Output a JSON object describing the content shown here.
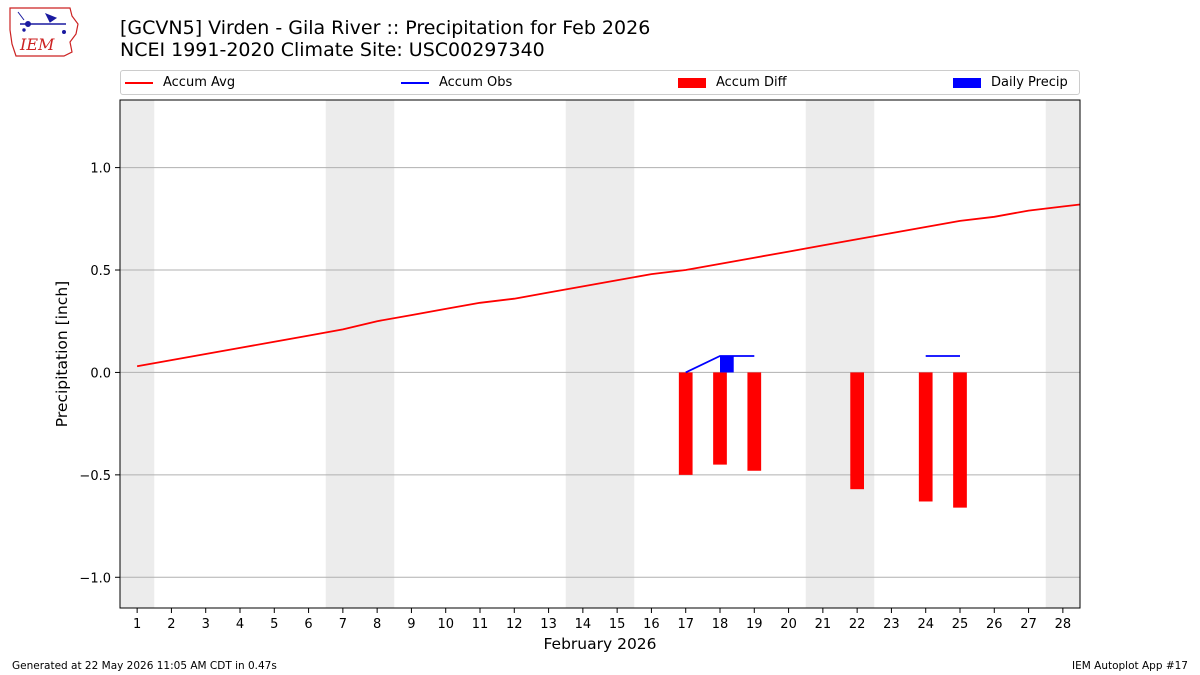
{
  "logo": {
    "text": "IEM",
    "icon": "iowa-state-outline-icon",
    "color": "#cc2222"
  },
  "title": {
    "line1": "[GCVN5] Virden - Gila River :: Precipitation for Feb 2026",
    "line2": "NCEI 1991-2020 Climate Site: USC00297340"
  },
  "legend": [
    {
      "label": "Accum Avg",
      "kind": "line",
      "color": "#ff0000"
    },
    {
      "label": "Accum Obs",
      "kind": "line",
      "color": "#0000ff"
    },
    {
      "label": "Accum Diff",
      "kind": "patch",
      "color": "#ff0000"
    },
    {
      "label": "Daily Precip",
      "kind": "patch",
      "color": "#0000ff"
    }
  ],
  "footer": {
    "left": "Generated at 22 May 2026 11:05 AM CDT in 0.47s",
    "right": "IEM Autoplot App #17"
  },
  "chart_data": {
    "type": "line",
    "title": "[GCVN5] Virden - Gila River :: Precipitation for Feb 2026",
    "subtitle": "NCEI 1991-2020 Climate Site: USC00297340",
    "xlabel": "February 2026",
    "ylabel": "Precipitation [inch]",
    "xlim": [
      0.5,
      28.5
    ],
    "ylim": [
      -1.15,
      1.33
    ],
    "x_ticks": [
      1,
      2,
      3,
      4,
      5,
      6,
      7,
      8,
      9,
      10,
      11,
      12,
      13,
      14,
      15,
      16,
      17,
      18,
      19,
      20,
      21,
      22,
      23,
      24,
      25,
      26,
      27,
      28
    ],
    "y_ticks": [
      -1.0,
      -0.5,
      0.0,
      0.5,
      1.0
    ],
    "y_tick_labels": [
      "−1.0",
      "−0.5",
      "0.0",
      "0.5",
      "1.0"
    ],
    "grid": "horizontal",
    "legend_position": "top",
    "weekend_shading": [
      [
        0.5,
        1.5
      ],
      [
        6.5,
        8.5
      ],
      [
        13.5,
        15.5
      ],
      [
        20.5,
        22.5
      ],
      [
        27.5,
        28.5
      ]
    ],
    "shading_color": "#ececec",
    "series": [
      {
        "name": "Accum Avg",
        "type": "line",
        "color": "#ff0000",
        "x": [
          1,
          2,
          3,
          4,
          5,
          6,
          7,
          8,
          9,
          10,
          11,
          12,
          13,
          14,
          15,
          16,
          17,
          18,
          19,
          20,
          21,
          22,
          23,
          24,
          25,
          26,
          27,
          28,
          28.5
        ],
        "values": [
          0.03,
          0.06,
          0.09,
          0.12,
          0.15,
          0.18,
          0.21,
          0.25,
          0.28,
          0.31,
          0.34,
          0.36,
          0.39,
          0.42,
          0.45,
          0.48,
          0.5,
          0.53,
          0.56,
          0.59,
          0.62,
          0.65,
          0.68,
          0.71,
          0.74,
          0.76,
          0.79,
          0.81,
          0.82
        ]
      },
      {
        "name": "Accum Obs",
        "type": "line",
        "color": "#0000ff",
        "segments": [
          {
            "x": [
              17,
              18,
              19
            ],
            "values": [
              0.0,
              0.08,
              0.08
            ]
          },
          {
            "x": [
              24,
              25
            ],
            "values": [
              0.08,
              0.08
            ]
          }
        ]
      },
      {
        "name": "Accum Diff",
        "type": "bar",
        "color": "#ff0000",
        "x": [
          17,
          18,
          19,
          22,
          24,
          25
        ],
        "values": [
          -0.5,
          -0.45,
          -0.48,
          -0.57,
          -0.63,
          -0.66
        ]
      },
      {
        "name": "Daily Precip",
        "type": "bar",
        "color": "#0000ff",
        "x": [
          18
        ],
        "values": [
          0.08
        ]
      }
    ]
  }
}
